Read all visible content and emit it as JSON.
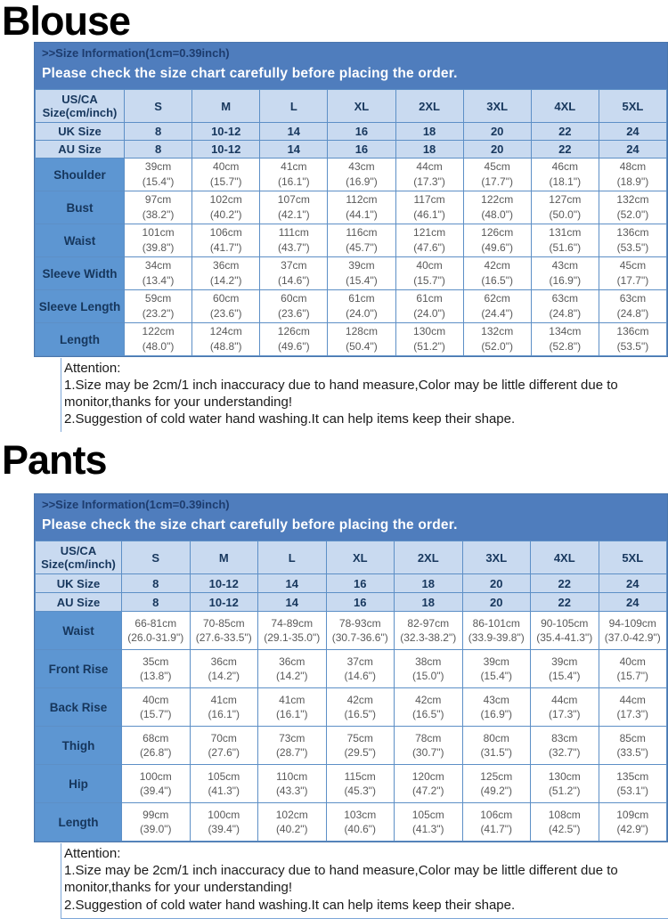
{
  "colors": {
    "band_blue": "#4f7dbd",
    "header_light_blue": "#c9daf0",
    "label_blue": "#5d96d2",
    "border_blue": "#5d8fc6",
    "navy_text": "#17375d",
    "band_line2_text": "#ffffff",
    "data_text": "#595959",
    "title_text": "#000000"
  },
  "blouse": {
    "title": "Blouse",
    "band": {
      "line1": ">>Size Information(1cm=0.39inch)",
      "line2": "Please check the size chart carefully before placing the order."
    },
    "table": {
      "corner_label": "US/CA\nSize(cm/inch)",
      "sizes": [
        "S",
        "M",
        "L",
        "XL",
        "2XL",
        "3XL",
        "4XL",
        "5XL"
      ],
      "uk_label": "UK Size",
      "uk": [
        "8",
        "10-12",
        "14",
        "16",
        "18",
        "20",
        "22",
        "24"
      ],
      "au_label": "AU Size",
      "au": [
        "8",
        "10-12",
        "14",
        "16",
        "18",
        "20",
        "22",
        "24"
      ],
      "rows": [
        {
          "label": "Shoulder",
          "cm": [
            "39cm",
            "40cm",
            "41cm",
            "43cm",
            "44cm",
            "45cm",
            "46cm",
            "48cm"
          ],
          "inch": [
            "(15.4\")",
            "(15.7\")",
            "(16.1\")",
            "(16.9\")",
            "(17.3\")",
            "(17.7\")",
            "(18.1\")",
            "(18.9\")"
          ]
        },
        {
          "label": "Bust",
          "cm": [
            "97cm",
            "102cm",
            "107cm",
            "112cm",
            "117cm",
            "122cm",
            "127cm",
            "132cm"
          ],
          "inch": [
            "(38.2\")",
            "(40.2\")",
            "(42.1\")",
            "(44.1\")",
            "(46.1\")",
            "(48.0\")",
            "(50.0\")",
            "(52.0\")"
          ]
        },
        {
          "label": "Waist",
          "cm": [
            "101cm",
            "106cm",
            "111cm",
            "116cm",
            "121cm",
            "126cm",
            "131cm",
            "136cm"
          ],
          "inch": [
            "(39.8\")",
            "(41.7\")",
            "(43.7\")",
            "(45.7\")",
            "(47.6\")",
            "(49.6\")",
            "(51.6\")",
            "(53.5\")"
          ]
        },
        {
          "label": "Sleeve Width",
          "cm": [
            "34cm",
            "36cm",
            "37cm",
            "39cm",
            "40cm",
            "42cm",
            "43cm",
            "45cm"
          ],
          "inch": [
            "(13.4\")",
            "(14.2\")",
            "(14.6\")",
            "(15.4\")",
            "(15.7\")",
            "(16.5\")",
            "(16.9\")",
            "(17.7\")"
          ]
        },
        {
          "label": "Sleeve Length",
          "cm": [
            "59cm",
            "60cm",
            "60cm",
            "61cm",
            "61cm",
            "62cm",
            "63cm",
            "63cm"
          ],
          "inch": [
            "(23.2\")",
            "(23.6\")",
            "(23.6\")",
            "(24.0\")",
            "(24.0\")",
            "(24.4\")",
            "(24.8\")",
            "(24.8\")"
          ]
        },
        {
          "label": "Length",
          "cm": [
            "122cm",
            "124cm",
            "126cm",
            "128cm",
            "130cm",
            "132cm",
            "134cm",
            "136cm"
          ],
          "inch": [
            "(48.0\")",
            "(48.8\")",
            "(49.6\")",
            "(50.4\")",
            "(51.2\")",
            "(52.0\")",
            "(52.8\")",
            "(53.5\")"
          ]
        }
      ]
    },
    "attention": {
      "title": "Attention:",
      "lines": [
        "1.Size may be 2cm/1 inch inaccuracy due to hand measure,Color may be little different due to monitor,thanks for your understanding!",
        "2.Suggestion of cold water hand washing.It can help items keep their shape."
      ]
    }
  },
  "pants": {
    "title": "Pants",
    "band": {
      "line1": ">>Size Information(1cm=0.39inch)",
      "line2": "Please check the size chart carefully before placing the order."
    },
    "table": {
      "corner_label": "US/CA\nSize(cm/inch)",
      "sizes": [
        "S",
        "M",
        "L",
        "XL",
        "2XL",
        "3XL",
        "4XL",
        "5XL"
      ],
      "uk_label": "UK Size",
      "uk": [
        "8",
        "10-12",
        "14",
        "16",
        "18",
        "20",
        "22",
        "24"
      ],
      "au_label": "AU Size",
      "au": [
        "8",
        "10-12",
        "14",
        "16",
        "18",
        "20",
        "22",
        "24"
      ],
      "rows": [
        {
          "label": "Waist",
          "cm": [
            "66-81cm",
            "70-85cm",
            "74-89cm",
            "78-93cm",
            "82-97cm",
            "86-101cm",
            "90-105cm",
            "94-109cm"
          ],
          "inch": [
            "(26.0-31.9\")",
            "(27.6-33.5\")",
            "(29.1-35.0\")",
            "(30.7-36.6\")",
            "(32.3-38.2\")",
            "(33.9-39.8\")",
            "(35.4-41.3\")",
            "(37.0-42.9\")"
          ]
        },
        {
          "label": "Front Rise",
          "cm": [
            "35cm",
            "36cm",
            "36cm",
            "37cm",
            "38cm",
            "39cm",
            "39cm",
            "40cm"
          ],
          "inch": [
            "(13.8\")",
            "(14.2\")",
            "(14.2\")",
            "(14.6\")",
            "(15.0\")",
            "(15.4\")",
            "(15.4\")",
            "(15.7\")"
          ]
        },
        {
          "label": "Back Rise",
          "cm": [
            "40cm",
            "41cm",
            "41cm",
            "42cm",
            "42cm",
            "43cm",
            "44cm",
            "44cm"
          ],
          "inch": [
            "(15.7\")",
            "(16.1\")",
            "(16.1\")",
            "(16.5\")",
            "(16.5\")",
            "(16.9\")",
            "(17.3\")",
            "(17.3\")"
          ]
        },
        {
          "label": "Thigh",
          "cm": [
            "68cm",
            "70cm",
            "73cm",
            "75cm",
            "78cm",
            "80cm",
            "83cm",
            "85cm"
          ],
          "inch": [
            "(26.8\")",
            "(27.6\")",
            "(28.7\")",
            "(29.5\")",
            "(30.7\")",
            "(31.5\")",
            "(32.7\")",
            "(33.5\")"
          ]
        },
        {
          "label": "Hip",
          "cm": [
            "100cm",
            "105cm",
            "110cm",
            "115cm",
            "120cm",
            "125cm",
            "130cm",
            "135cm"
          ],
          "inch": [
            "(39.4\")",
            "(41.3\")",
            "(43.3\")",
            "(45.3\")",
            "(47.2\")",
            "(49.2\")",
            "(51.2\")",
            "(53.1\")"
          ]
        },
        {
          "label": "Length",
          "cm": [
            "99cm",
            "100cm",
            "102cm",
            "103cm",
            "105cm",
            "106cm",
            "108cm",
            "109cm"
          ],
          "inch": [
            "(39.0\")",
            "(39.4\")",
            "(40.2\")",
            "(40.6\")",
            "(41.3\")",
            "(41.7\")",
            "(42.5\")",
            "(42.9\")"
          ]
        }
      ]
    },
    "attention": {
      "title": "Attention:",
      "lines": [
        "1.Size may be 2cm/1 inch inaccuracy due to hand measure,Color may be little different due to monitor,thanks for your understanding!",
        "2.Suggestion of cold water hand washing.It can help items keep their shape."
      ]
    }
  }
}
